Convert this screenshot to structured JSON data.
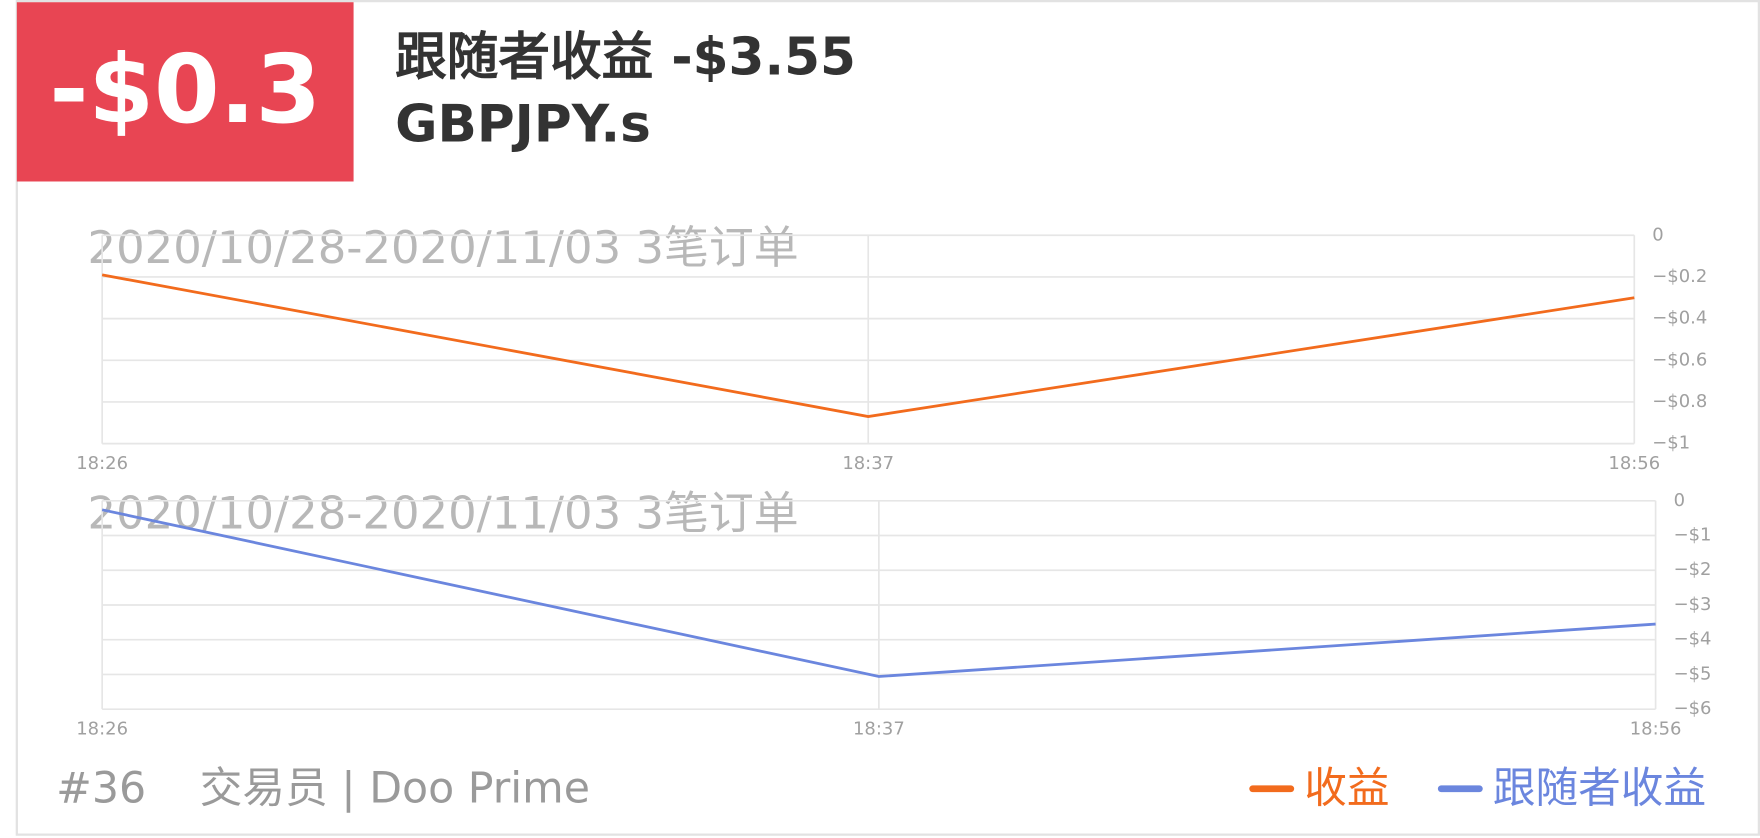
{
  "header": {
    "badge": "-$0.3",
    "title": "跟随者收益 -$3.55",
    "symbol": "GBPJPY.s"
  },
  "chart_data": [
    {
      "type": "line",
      "watermark": "2020/10/28-2020/11/03 3笔订单",
      "categories": [
        "18:26",
        "18:37",
        "18:56"
      ],
      "series": [
        {
          "name": "收益",
          "color": "#f26b1d",
          "values": [
            -0.19,
            -0.87,
            -0.3
          ]
        }
      ],
      "ylim": [
        -1,
        0
      ],
      "yticks": [
        0,
        {
          "value": -0.2,
          "label": "−$0.2"
        },
        {
          "value": -0.4,
          "label": "−$0.4"
        },
        {
          "value": -0.6,
          "label": "−$0.6"
        },
        {
          "value": -0.8,
          "label": "−$0.8"
        },
        {
          "value": -1,
          "label": "−$1"
        }
      ],
      "grid": true
    },
    {
      "type": "line",
      "watermark": "2020/10/28-2020/11/03 3笔订单",
      "categories": [
        "18:26",
        "18:37",
        "18:56"
      ],
      "series": [
        {
          "name": "跟随者收益",
          "color": "#6b86de",
          "values": [
            -0.26,
            -5.06,
            -3.55
          ]
        }
      ],
      "ylim": [
        -6,
        0
      ],
      "yticks": [
        0,
        {
          "value": -1,
          "label": "−$1"
        },
        {
          "value": -2,
          "label": "−$2"
        },
        {
          "value": -3,
          "label": "−$3"
        },
        {
          "value": -4,
          "label": "−$4"
        },
        {
          "value": -5,
          "label": "−$5"
        },
        {
          "value": -6,
          "label": "−$6"
        }
      ],
      "grid": true
    }
  ],
  "footer": {
    "rank": "#36",
    "role": "交易员 | Doo Prime"
  }
}
